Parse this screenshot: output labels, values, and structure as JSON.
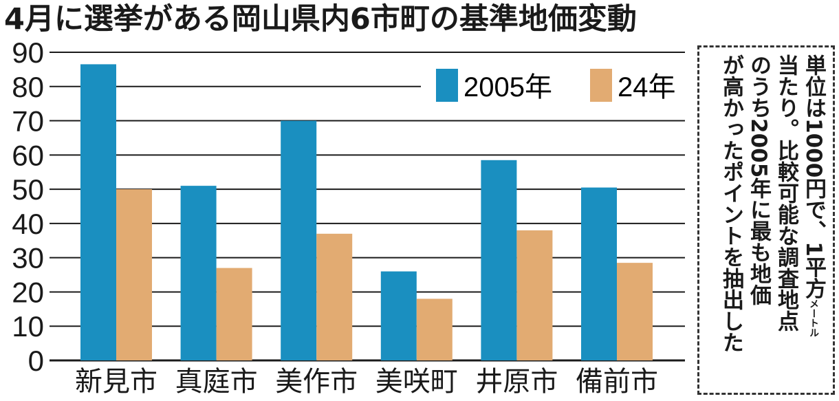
{
  "title": "4月に選挙がある岡山県内6市町の基準地価変動",
  "note": {
    "line1": "単位は1000円で、1平方",
    "unit_small": "メートル",
    "line2": "当たり。比較可能な調査地点",
    "line3": "のうち2005年に最も地価",
    "line4": "が高かったポイントを抽出した"
  },
  "colors": {
    "s2005": "#1a8fc0",
    "s2024": "#e2ab72",
    "grid": "#1a1a1a"
  },
  "chart_data": {
    "type": "bar",
    "categories": [
      "新見市",
      "真庭市",
      "美作市",
      "美咲町",
      "井原市",
      "備前市"
    ],
    "series": [
      {
        "name": "2005年",
        "values": [
          86.5,
          51,
          70,
          26,
          58.5,
          50.5
        ]
      },
      {
        "name": "24年",
        "values": [
          50,
          27,
          37,
          18,
          38,
          28.5
        ]
      }
    ],
    "ylim": [
      0,
      90
    ],
    "yticks": [
      0,
      10,
      20,
      30,
      40,
      50,
      60,
      70,
      80,
      90
    ],
    "grid": true,
    "legend": "top-right"
  }
}
